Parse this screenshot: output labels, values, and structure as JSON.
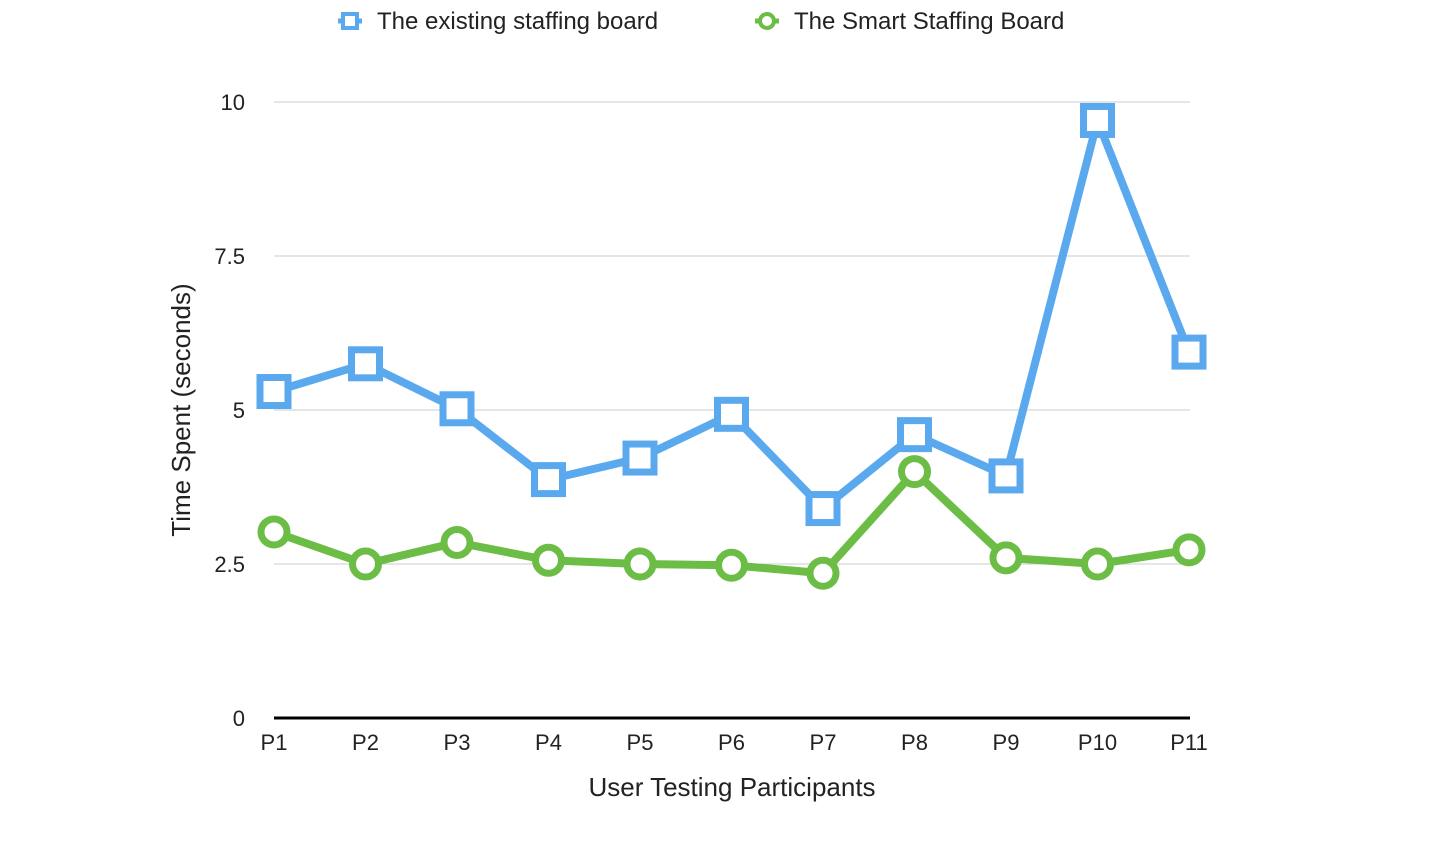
{
  "chart_data": {
    "type": "line",
    "categories": [
      "P1",
      "P2",
      "P3",
      "P4",
      "P5",
      "P6",
      "P7",
      "P8",
      "P9",
      "P10",
      "P11"
    ],
    "series": [
      {
        "name": "The existing staffing board",
        "color": "#5aa9ef",
        "marker": "square",
        "values": [
          5.3,
          5.75,
          5.02,
          3.87,
          4.22,
          4.93,
          3.4,
          4.6,
          3.93,
          9.7,
          5.94
        ]
      },
      {
        "name": "The Smart Staffing Board",
        "color": "#6cbd45",
        "marker": "circle",
        "values": [
          3.02,
          2.5,
          2.85,
          2.56,
          2.5,
          2.48,
          2.35,
          4.0,
          2.6,
          2.5,
          2.73
        ]
      }
    ],
    "title": "",
    "xlabel": "User Testing Participants",
    "ylabel": "Time Spent (seconds)",
    "ylim": [
      0,
      10
    ],
    "yticks": [
      0,
      2.5,
      5,
      7.5,
      10
    ],
    "ytick_labels": [
      "0",
      "2.5",
      "5",
      "7.5",
      "10"
    ],
    "grid": true,
    "legend_position": "top"
  }
}
